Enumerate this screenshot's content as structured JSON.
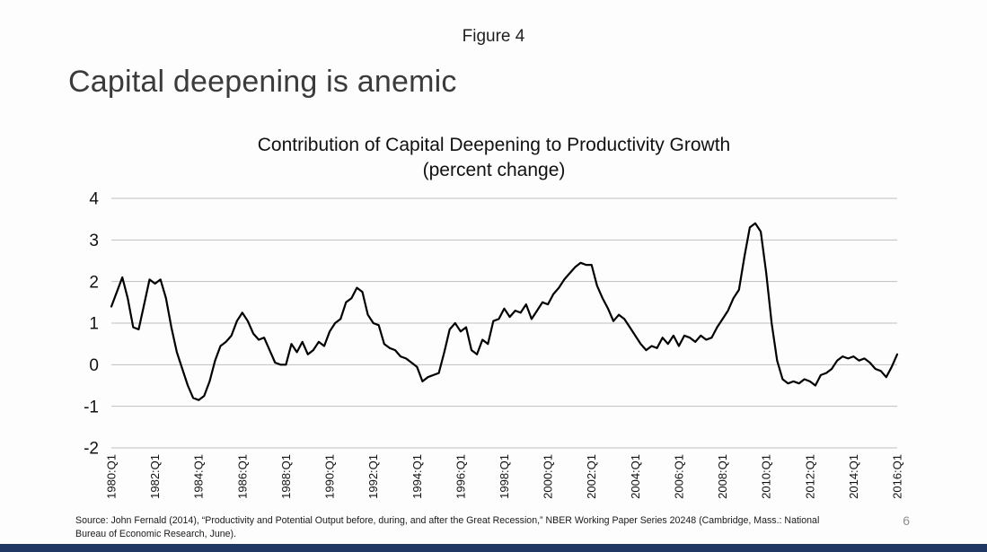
{
  "slide": {
    "figure_label": "Figure 4",
    "title": "Capital deepening is anemic",
    "page_number": "6",
    "source_text": "Source:  John Fernald (2014), “Productivity and Potential Output before, during, and after the Great Recession,” NBER Working Paper Series 20248 (Cambridge, Mass.:  National Bureau of Economic Research, June).",
    "accent_bar_color": "#1f3864"
  },
  "chart_data": {
    "type": "line",
    "title": "Contribution of Capital Deepening to Productivity Growth",
    "subtitle": "(percent change)",
    "x_unit": "quarter",
    "x_start": "1980:Q1",
    "x_end": "2016:Q1",
    "x_tick_labels": [
      "1980:Q1",
      "1982:Q1",
      "1984:Q1",
      "1986:Q1",
      "1988:Q1",
      "1990:Q1",
      "1992:Q1",
      "1994:Q1",
      "1996:Q1",
      "1998:Q1",
      "2000:Q1",
      "2002:Q1",
      "2004:Q1",
      "2006:Q1",
      "2008:Q1",
      "2010:Q1",
      "2012:Q1",
      "2014:Q1",
      "2016:Q1"
    ],
    "x_ticks_every_n_points": 8,
    "ylim": [
      -2,
      4
    ],
    "y_ticks": [
      4,
      3,
      2,
      1,
      0,
      -1,
      -2
    ],
    "grid": "horizontal",
    "grid_color": "#bfbfbf",
    "line_color": "#000000",
    "legend": "none",
    "series": [
      {
        "name": "Contribution of capital deepening to productivity growth (percent change)",
        "values": [
          1.4,
          1.75,
          2.1,
          1.6,
          0.9,
          0.85,
          1.45,
          2.05,
          1.95,
          2.05,
          1.6,
          0.9,
          0.3,
          -0.1,
          -0.5,
          -0.8,
          -0.85,
          -0.75,
          -0.4,
          0.1,
          0.45,
          0.55,
          0.7,
          1.05,
          1.25,
          1.05,
          0.75,
          0.6,
          0.65,
          0.35,
          0.05,
          0.0,
          0.0,
          0.5,
          0.3,
          0.55,
          0.25,
          0.35,
          0.55,
          0.45,
          0.8,
          1.0,
          1.1,
          1.5,
          1.6,
          1.85,
          1.75,
          1.2,
          1.0,
          0.95,
          0.5,
          0.4,
          0.35,
          0.2,
          0.15,
          0.05,
          -0.05,
          -0.4,
          -0.3,
          -0.25,
          -0.2,
          0.3,
          0.85,
          1.0,
          0.8,
          0.9,
          0.35,
          0.25,
          0.6,
          0.5,
          1.05,
          1.1,
          1.35,
          1.15,
          1.3,
          1.25,
          1.45,
          1.1,
          1.3,
          1.5,
          1.45,
          1.7,
          1.85,
          2.05,
          2.2,
          2.35,
          2.45,
          2.4,
          2.4,
          1.9,
          1.6,
          1.35,
          1.05,
          1.2,
          1.1,
          0.9,
          0.7,
          0.5,
          0.35,
          0.45,
          0.4,
          0.65,
          0.5,
          0.7,
          0.45,
          0.7,
          0.65,
          0.55,
          0.7,
          0.6,
          0.65,
          0.9,
          1.1,
          1.3,
          1.6,
          1.8,
          2.6,
          3.3,
          3.4,
          3.2,
          2.2,
          1.0,
          0.1,
          -0.35,
          -0.45,
          -0.4,
          -0.45,
          -0.35,
          -0.4,
          -0.5,
          -0.25,
          -0.2,
          -0.1,
          0.1,
          0.2,
          0.15,
          0.2,
          0.1,
          0.15,
          0.05,
          -0.1,
          -0.15,
          -0.3,
          -0.05,
          0.25
        ]
      }
    ]
  }
}
